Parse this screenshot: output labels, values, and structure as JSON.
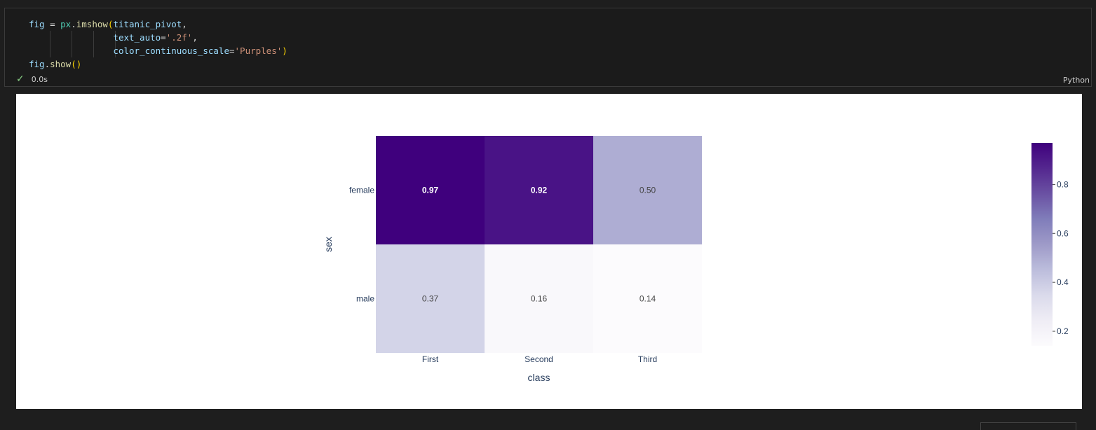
{
  "cell": {
    "code_lines": [
      [
        {
          "t": "fig",
          "c": "kw-var"
        },
        {
          "t": " = ",
          "c": ""
        },
        {
          "t": "px",
          "c": "kw-mod"
        },
        {
          "t": ".",
          "c": ""
        },
        {
          "t": "imshow",
          "c": "kw-fn"
        },
        {
          "t": "(",
          "c": "kw-paren"
        },
        {
          "t": "titanic_pivot",
          "c": "kw-var"
        },
        {
          "t": ",",
          "c": ""
        }
      ],
      [
        {
          "t": "                ",
          "c": ""
        },
        {
          "t": "text_auto",
          "c": "kw-var"
        },
        {
          "t": "=",
          "c": ""
        },
        {
          "t": "'.2f'",
          "c": "kw-str"
        },
        {
          "t": ",",
          "c": ""
        }
      ],
      [
        {
          "t": "                ",
          "c": ""
        },
        {
          "t": "color_continuous_scale",
          "c": "kw-var"
        },
        {
          "t": "=",
          "c": ""
        },
        {
          "t": "'Purples'",
          "c": "kw-str"
        },
        {
          "t": ")",
          "c": "kw-paren"
        }
      ],
      [
        {
          "t": "fig",
          "c": "kw-var"
        },
        {
          "t": ".",
          "c": ""
        },
        {
          "t": "show",
          "c": "kw-fn"
        },
        {
          "t": "()",
          "c": "kw-paren"
        }
      ]
    ],
    "exec_time": "0.0s",
    "language": "Python"
  },
  "chart_data": {
    "type": "heatmap",
    "x": [
      "First",
      "Second",
      "Third"
    ],
    "y": [
      "female",
      "male"
    ],
    "z": [
      [
        0.97,
        0.92,
        0.5
      ],
      [
        0.37,
        0.16,
        0.14
      ]
    ],
    "text": [
      [
        "0.97",
        "0.92",
        "0.50"
      ],
      [
        "0.37",
        "0.16",
        "0.14"
      ]
    ],
    "xlabel": "class",
    "ylabel": "sex",
    "colorscale": "Purples",
    "colorbar_ticks": [
      "0.2",
      "0.4",
      "0.6",
      "0.8"
    ],
    "colorbar_tick_values": [
      0.2,
      0.4,
      0.6,
      0.8
    ],
    "zmin": 0.14,
    "zmax": 0.97
  }
}
